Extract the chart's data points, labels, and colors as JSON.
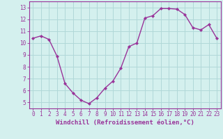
{
  "hours": [
    0,
    1,
    2,
    3,
    4,
    5,
    6,
    7,
    8,
    9,
    10,
    11,
    12,
    13,
    14,
    15,
    16,
    17,
    18,
    19,
    20,
    21,
    22,
    23
  ],
  "values": [
    10.4,
    10.6,
    10.3,
    8.9,
    6.6,
    5.8,
    5.2,
    4.9,
    5.4,
    6.2,
    6.8,
    7.9,
    9.7,
    10.0,
    12.1,
    12.3,
    12.9,
    12.9,
    12.85,
    12.4,
    11.3,
    11.1,
    11.55,
    10.4
  ],
  "line_color": "#993399",
  "marker_color": "#993399",
  "bg_color": "#d4f0ee",
  "grid_color": "#b0d8d8",
  "xlabel": "Windchill (Refroidissement éolien,°C)",
  "ylim": [
    4.5,
    13.5
  ],
  "xlim": [
    -0.5,
    23.5
  ],
  "yticks": [
    5,
    6,
    7,
    8,
    9,
    10,
    11,
    12,
    13
  ],
  "xticks": [
    0,
    1,
    2,
    3,
    4,
    5,
    6,
    7,
    8,
    9,
    10,
    11,
    12,
    13,
    14,
    15,
    16,
    17,
    18,
    19,
    20,
    21,
    22,
    23
  ],
  "tick_label_size": 5.5,
  "xlabel_size": 6.5,
  "marker_size": 2.2,
  "line_width": 1.0
}
